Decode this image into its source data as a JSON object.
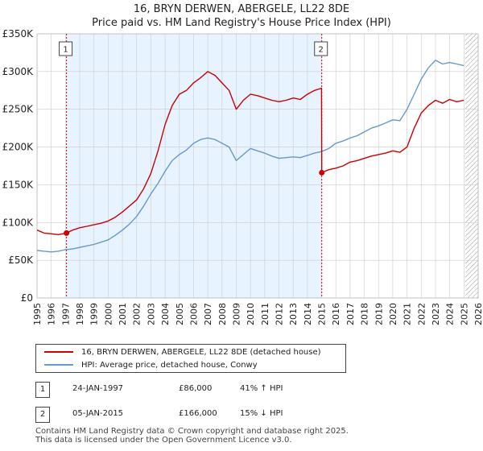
{
  "title_line1": "16, BRYN DERWEN, ABERGELE, LL22 8DE",
  "title_line2": "Price paid vs. HM Land Registry's House Price Index (HPI)",
  "colors": {
    "price": "#cc0000",
    "hpi": "#6699cc",
    "shade": "#ddeeff",
    "grid": "#cccccc",
    "vline": "#cc0000"
  },
  "chart_data": {
    "type": "line",
    "title": "16, BRYN DERWEN, ABERGELE, LL22 8DE — Price paid vs. HM Land Registry's House Price Index (HPI)",
    "xlabel": "",
    "ylabel": "",
    "xlim": [
      1995,
      2026
    ],
    "ylim": [
      0,
      350000
    ],
    "x_ticks": [
      1995,
      1996,
      1997,
      1998,
      1999,
      2000,
      2001,
      2002,
      2003,
      2004,
      2005,
      2006,
      2007,
      2008,
      2009,
      2010,
      2011,
      2012,
      2013,
      2014,
      2015,
      2016,
      2017,
      2018,
      2019,
      2020,
      2021,
      2022,
      2023,
      2024,
      2025,
      2026
    ],
    "y_ticks": [
      {
        "value": 0,
        "label": "£0"
      },
      {
        "value": 50000,
        "label": "£50K"
      },
      {
        "value": 100000,
        "label": "£100K"
      },
      {
        "value": 150000,
        "label": "£150K"
      },
      {
        "value": 200000,
        "label": "£200K"
      },
      {
        "value": 250000,
        "label": "£250K"
      },
      {
        "value": 300000,
        "label": "£300K"
      },
      {
        "value": 350000,
        "label": "£350K"
      }
    ],
    "shaded_range": [
      1997.07,
      2015.01
    ],
    "future_hatch_from": 2025.1,
    "series": [
      {
        "name": "16, BRYN DERWEN, ABERGELE, LL22 8DE (detached house)",
        "color_key": "price",
        "x": [
          1995.0,
          1995.5,
          1996.0,
          1996.5,
          1997.07,
          1997.5,
          1998.0,
          1998.5,
          1999.0,
          1999.5,
          2000.0,
          2000.5,
          2001.0,
          2001.5,
          2002.0,
          2002.5,
          2003.0,
          2003.5,
          2004.0,
          2004.5,
          2005.0,
          2005.5,
          2006.0,
          2006.5,
          2007.0,
          2007.5,
          2008.0,
          2008.5,
          2009.0,
          2009.5,
          2010.0,
          2010.5,
          2011.0,
          2011.5,
          2012.0,
          2012.5,
          2013.0,
          2013.5,
          2014.0,
          2014.5,
          2014.99,
          2015.01,
          2015.5,
          2016.0,
          2016.5,
          2017.0,
          2017.5,
          2018.0,
          2018.5,
          2019.0,
          2019.5,
          2020.0,
          2020.5,
          2021.0,
          2021.5,
          2022.0,
          2022.5,
          2023.0,
          2023.5,
          2024.0,
          2024.5,
          2025.0
        ],
        "values": [
          90000,
          86000,
          85000,
          84000,
          86000,
          90000,
          93000,
          95000,
          97000,
          99000,
          102000,
          107000,
          114000,
          122000,
          130000,
          145000,
          165000,
          195000,
          230000,
          255000,
          270000,
          275000,
          285000,
          292000,
          300000,
          295000,
          285000,
          275000,
          250000,
          262000,
          270000,
          268000,
          265000,
          262000,
          260000,
          262000,
          265000,
          263000,
          270000,
          275000,
          278000,
          166000,
          170000,
          172000,
          175000,
          180000,
          182000,
          185000,
          188000,
          190000,
          192000,
          195000,
          193000,
          200000,
          225000,
          245000,
          255000,
          262000,
          258000,
          263000,
          260000,
          262000
        ]
      },
      {
        "name": "HPI: Average price, detached house, Conwy",
        "color_key": "hpi",
        "x": [
          1995.0,
          1995.5,
          1996.0,
          1996.5,
          1997.0,
          1997.5,
          1998.0,
          1998.5,
          1999.0,
          1999.5,
          2000.0,
          2000.5,
          2001.0,
          2001.5,
          2002.0,
          2002.5,
          2003.0,
          2003.5,
          2004.0,
          2004.5,
          2005.0,
          2005.5,
          2006.0,
          2006.5,
          2007.0,
          2007.5,
          2008.0,
          2008.5,
          2009.0,
          2009.5,
          2010.0,
          2010.5,
          2011.0,
          2011.5,
          2012.0,
          2012.5,
          2013.0,
          2013.5,
          2014.0,
          2014.5,
          2015.0,
          2015.5,
          2016.0,
          2016.5,
          2017.0,
          2017.5,
          2018.0,
          2018.5,
          2019.0,
          2019.5,
          2020.0,
          2020.5,
          2021.0,
          2021.5,
          2022.0,
          2022.5,
          2023.0,
          2023.5,
          2024.0,
          2024.5,
          2025.0
        ],
        "values": [
          63000,
          62000,
          61000,
          62000,
          64000,
          65000,
          67000,
          69000,
          71000,
          74000,
          77000,
          83000,
          90000,
          98000,
          108000,
          122000,
          138000,
          152000,
          168000,
          182000,
          190000,
          196000,
          205000,
          210000,
          212000,
          210000,
          205000,
          200000,
          182000,
          190000,
          198000,
          195000,
          192000,
          188000,
          185000,
          186000,
          187000,
          186000,
          189000,
          192000,
          194000,
          198000,
          205000,
          208000,
          212000,
          215000,
          220000,
          225000,
          228000,
          232000,
          236000,
          235000,
          250000,
          270000,
          290000,
          305000,
          315000,
          310000,
          312000,
          310000,
          308000
        ]
      }
    ],
    "annotations": [
      {
        "label": "1",
        "x": 1997.07,
        "y": 86000
      },
      {
        "label": "2",
        "x": 2015.01,
        "y": 166000
      }
    ]
  },
  "legend": {
    "price_label": "16, BRYN DERWEN, ABERGELE, LL22 8DE (detached house)",
    "hpi_label": "HPI: Average price, detached house, Conwy"
  },
  "transactions": [
    {
      "num": "1",
      "date": "24-JAN-1997",
      "price": "£86,000",
      "hpi": "41% ↑ HPI"
    },
    {
      "num": "2",
      "date": "05-JAN-2015",
      "price": "£166,000",
      "hpi": "15% ↓ HPI"
    }
  ],
  "footer": {
    "line1": "Contains HM Land Registry data © Crown copyright and database right 2025.",
    "line2": "This data is licensed under the Open Government Licence v3.0."
  }
}
